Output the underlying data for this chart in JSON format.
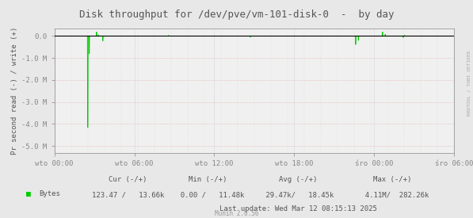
{
  "title": "Disk throughput for /dev/pve/vm-101-disk-0  -  by day",
  "ylabel": "Pr second read (-) / write (+)",
  "xlabel_ticks": [
    "wto 00:00",
    "wto 06:00",
    "wto 12:00",
    "wto 18:00",
    "śro 00:00",
    "śro 06:00"
  ],
  "yticks": [
    0.0,
    -1.0,
    -2.0,
    -3.0,
    -4.0,
    -5.0
  ],
  "ytick_labels": [
    "0.0",
    "-1.0 M",
    "-2.0 M",
    "-3.0 M",
    "-4.0 M",
    "-5.0 M"
  ],
  "ylim": [
    -5.3,
    0.35
  ],
  "xlim": [
    0,
    1
  ],
  "bg_color": "#e8e8e8",
  "plot_bg_color": "#f0f0f0",
  "grid_color_h": "#e8a0a0",
  "grid_color_v": "#b0b8c8",
  "line_color": "#00cc00",
  "fill_color": "#00cc00",
  "zero_line_color": "#000000",
  "axis_color": "#888888",
  "title_color": "#555555",
  "label_color": "#555555",
  "legend_color": "#555555",
  "watermark": "RRDTOOL / TOBI OETIKER",
  "footer_munin": "Munin 2.0.56",
  "footer_last_update": "Last update: Wed Mar 12 08:15:13 2025",
  "legend_label": "Bytes",
  "legend_cur": "Cur (-/+)",
  "legend_cur_val": "123.47 /   13.66k",
  "legend_min": "Min (-/+)",
  "legend_min_val": "  0.00 /   11.48k",
  "legend_avg": "Avg (-/+)",
  "legend_avg_val": " 29.47k/   18.45k",
  "legend_max": "Max (-/+)",
  "legend_max_val": "  4.11M/  282.26k"
}
